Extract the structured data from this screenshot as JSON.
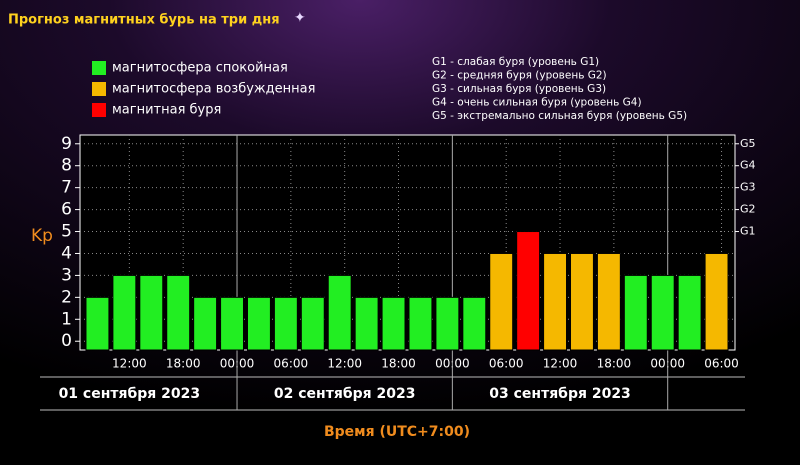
{
  "chart_data": {
    "type": "bar",
    "title": "Прогноз магнитных бурь на три дня",
    "legend": [
      {
        "label": "магнитосфера спокойная",
        "color": "#22ee22"
      },
      {
        "label": "магнитосфера возбужденная",
        "color": "#f5b800"
      },
      {
        "label": "магнитная буря",
        "color": "#ff0000"
      }
    ],
    "storm_levels": [
      "G1 - слабая буря (уровень G1)",
      "G2 - средняя буря (уровень G2)",
      "G3 - сильная буря (уровень G3)",
      "G4 - очень сильная буря (уровень G4)",
      "G5 - экстремально сильная буря (уровень G5)"
    ],
    "y_label": "Kp",
    "x_label": "Время (UTC+7:00)",
    "x": [
      7,
      10,
      13,
      16,
      19,
      22,
      25,
      28,
      31,
      34,
      37,
      40,
      43,
      46,
      49,
      52,
      55,
      58,
      61,
      64,
      67,
      70,
      73,
      76
    ],
    "values": [
      2,
      3,
      3,
      3,
      2,
      2,
      2,
      2,
      2,
      3,
      2,
      2,
      2,
      2,
      2,
      4,
      5,
      4,
      4,
      4,
      3,
      3,
      3,
      4
    ],
    "bar_colors": [
      "#22ee22",
      "#22ee22",
      "#22ee22",
      "#22ee22",
      "#22ee22",
      "#22ee22",
      "#22ee22",
      "#22ee22",
      "#22ee22",
      "#22ee22",
      "#22ee22",
      "#22ee22",
      "#22ee22",
      "#22ee22",
      "#22ee22",
      "#f5b800",
      "#ff0000",
      "#f5b800",
      "#f5b800",
      "#f5b800",
      "#22ee22",
      "#22ee22",
      "#22ee22",
      "#f5b800"
    ],
    "xlim": [
      6.5,
      79.5
    ],
    "xticks": [
      {
        "value": 12,
        "label": "12:00"
      },
      {
        "value": 18,
        "label": "18:00"
      },
      {
        "value": 24,
        "label": "00:00"
      },
      {
        "value": 30,
        "label": "06:00"
      },
      {
        "value": 36,
        "label": "12:00"
      },
      {
        "value": 42,
        "label": "18:00"
      },
      {
        "value": 48,
        "label": "00:00"
      },
      {
        "value": 54,
        "label": "06:00"
      },
      {
        "value": 60,
        "label": "12:00"
      },
      {
        "value": 66,
        "label": "18:00"
      },
      {
        "value": 72,
        "label": "00:00"
      },
      {
        "value": 78,
        "label": "06:00"
      }
    ],
    "dates": [
      {
        "value": 12,
        "label": "01 сентября 2023"
      },
      {
        "value": 36,
        "label": "02 сентября 2023"
      },
      {
        "value": 60,
        "label": "03 сентября 2023"
      }
    ],
    "ylim": [
      -0.4,
      9.4
    ],
    "yticks": [
      0,
      1,
      2,
      3,
      4,
      5,
      6,
      7,
      8,
      9
    ],
    "y2ticks": [
      {
        "value": 5,
        "label": "G1"
      },
      {
        "value": 6,
        "label": "G2"
      },
      {
        "value": 7,
        "label": "G3"
      },
      {
        "value": 8,
        "label": "G4"
      },
      {
        "value": 9,
        "label": "G5"
      }
    ],
    "grid": true
  }
}
